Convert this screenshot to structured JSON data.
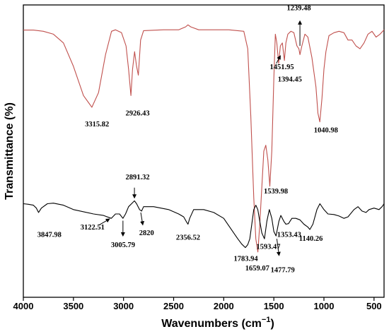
{
  "chart_data": {
    "type": "line",
    "xlabel": "Wavenumbers (cm",
    "xlabel_sup": "−1",
    "xlabel_close": ")",
    "ylabel": "Transmittance (%)",
    "xlim": [
      4000,
      400
    ],
    "x_reversed": true,
    "x_ticks": [
      4000,
      3500,
      3000,
      2500,
      2000,
      1500,
      1000,
      500
    ],
    "y_ticks_shown": false,
    "grid": false,
    "series": [
      {
        "color": "#c0504d",
        "points": [
          [
            4000,
            0.914
          ],
          [
            3900,
            0.914
          ],
          [
            3800,
            0.91
          ],
          [
            3700,
            0.9
          ],
          [
            3600,
            0.87
          ],
          [
            3500,
            0.79
          ],
          [
            3400,
            0.69
          ],
          [
            3315.82,
            0.65
          ],
          [
            3250,
            0.7
          ],
          [
            3180,
            0.83
          ],
          [
            3120,
            0.91
          ],
          [
            3080,
            0.915
          ],
          [
            3020,
            0.905
          ],
          [
            2975,
            0.86
          ],
          [
            2950,
            0.78
          ],
          [
            2926.43,
            0.69
          ],
          [
            2910,
            0.78
          ],
          [
            2890,
            0.84
          ],
          [
            2870,
            0.79
          ],
          [
            2852,
            0.76
          ],
          [
            2830,
            0.88
          ],
          [
            2800,
            0.912
          ],
          [
            2600,
            0.915
          ],
          [
            2450,
            0.915
          ],
          [
            2380,
            0.925
          ],
          [
            2356.52,
            0.932
          ],
          [
            2330,
            0.925
          ],
          [
            2250,
            0.915
          ],
          [
            1950,
            0.915
          ],
          [
            1800,
            0.91
          ],
          [
            1760,
            0.85
          ],
          [
            1730,
            0.62
          ],
          [
            1700,
            0.34
          ],
          [
            1680,
            0.2
          ],
          [
            1659.07,
            0.155
          ],
          [
            1640,
            0.25
          ],
          [
            1600,
            0.5
          ],
          [
            1580,
            0.52
          ],
          [
            1560,
            0.47
          ],
          [
            1539.98,
            0.38
          ],
          [
            1520,
            0.5
          ],
          [
            1500,
            0.75
          ],
          [
            1485,
            0.9
          ],
          [
            1470,
            0.87
          ],
          [
            1451.95,
            0.8
          ],
          [
            1435,
            0.86
          ],
          [
            1415,
            0.87
          ],
          [
            1394.45,
            0.81
          ],
          [
            1380,
            0.87
          ],
          [
            1360,
            0.9
          ],
          [
            1330,
            0.91
          ],
          [
            1300,
            0.905
          ],
          [
            1270,
            0.86
          ],
          [
            1250,
            0.85
          ],
          [
            1239.48,
            0.83
          ],
          [
            1220,
            0.86
          ],
          [
            1190,
            0.9
          ],
          [
            1160,
            0.89
          ],
          [
            1120,
            0.82
          ],
          [
            1080,
            0.72
          ],
          [
            1060,
            0.63
          ],
          [
            1040.98,
            0.6
          ],
          [
            1020,
            0.68
          ],
          [
            1000,
            0.78
          ],
          [
            980,
            0.84
          ],
          [
            950,
            0.895
          ],
          [
            900,
            0.905
          ],
          [
            850,
            0.91
          ],
          [
            800,
            0.905
          ],
          [
            760,
            0.88
          ],
          [
            720,
            0.88
          ],
          [
            680,
            0.86
          ],
          [
            640,
            0.85
          ],
          [
            600,
            0.87
          ],
          [
            560,
            0.9
          ],
          [
            520,
            0.91
          ],
          [
            480,
            0.89
          ],
          [
            440,
            0.9
          ],
          [
            400,
            0.915
          ]
        ]
      },
      {
        "color": "#000000",
        "points": [
          [
            4000,
            0.32
          ],
          [
            3950,
            0.318
          ],
          [
            3900,
            0.315
          ],
          [
            3870,
            0.305
          ],
          [
            3847.98,
            0.29
          ],
          [
            3820,
            0.305
          ],
          [
            3760,
            0.32
          ],
          [
            3700,
            0.322
          ],
          [
            3600,
            0.315
          ],
          [
            3500,
            0.3
          ],
          [
            3300,
            0.285
          ],
          [
            3200,
            0.28
          ],
          [
            3122.51,
            0.27
          ],
          [
            3080,
            0.285
          ],
          [
            3040,
            0.285
          ],
          [
            3005.79,
            0.27
          ],
          [
            2980,
            0.285
          ],
          [
            2950,
            0.31
          ],
          [
            2920,
            0.32
          ],
          [
            2891.32,
            0.33
          ],
          [
            2870,
            0.32
          ],
          [
            2840,
            0.3
          ],
          [
            2820,
            0.295
          ],
          [
            2800,
            0.31
          ],
          [
            2700,
            0.31
          ],
          [
            2550,
            0.3
          ],
          [
            2450,
            0.285
          ],
          [
            2400,
            0.275
          ],
          [
            2375,
            0.26
          ],
          [
            2356.52,
            0.25
          ],
          [
            2340,
            0.27
          ],
          [
            2300,
            0.3
          ],
          [
            2200,
            0.3
          ],
          [
            2100,
            0.29
          ],
          [
            2000,
            0.27
          ],
          [
            1950,
            0.245
          ],
          [
            1900,
            0.22
          ],
          [
            1860,
            0.2
          ],
          [
            1820,
            0.182
          ],
          [
            1783.94,
            0.17
          ],
          [
            1760,
            0.18
          ],
          [
            1740,
            0.2
          ],
          [
            1720,
            0.25
          ],
          [
            1700,
            0.3
          ],
          [
            1680,
            0.315
          ],
          [
            1660,
            0.3
          ],
          [
            1640,
            0.26
          ],
          [
            1620,
            0.22
          ],
          [
            1593.47,
            0.2
          ],
          [
            1570,
            0.26
          ],
          [
            1545,
            0.3
          ],
          [
            1520,
            0.27
          ],
          [
            1500,
            0.225
          ],
          [
            1477.79,
            0.21
          ],
          [
            1450,
            0.26
          ],
          [
            1430,
            0.28
          ],
          [
            1400,
            0.26
          ],
          [
            1380,
            0.25
          ],
          [
            1353.43,
            0.252
          ],
          [
            1320,
            0.27
          ],
          [
            1280,
            0.27
          ],
          [
            1240,
            0.265
          ],
          [
            1200,
            0.25
          ],
          [
            1160,
            0.24
          ],
          [
            1140.26,
            0.232
          ],
          [
            1110,
            0.25
          ],
          [
            1070,
            0.3
          ],
          [
            1040,
            0.32
          ],
          [
            1000,
            0.3
          ],
          [
            960,
            0.285
          ],
          [
            900,
            0.283
          ],
          [
            850,
            0.278
          ],
          [
            800,
            0.27
          ],
          [
            760,
            0.275
          ],
          [
            700,
            0.3
          ],
          [
            660,
            0.31
          ],
          [
            620,
            0.295
          ],
          [
            580,
            0.29
          ],
          [
            550,
            0.3
          ],
          [
            500,
            0.305
          ],
          [
            450,
            0.3
          ],
          [
            420,
            0.31
          ],
          [
            400,
            0.32
          ]
        ]
      }
    ],
    "annotations": [
      {
        "text": "3315.82",
        "x": 3315.82,
        "series": 0,
        "label_x": 3265,
        "label_y": 0.584,
        "arrow": false
      },
      {
        "text": "2926.43",
        "x": 2926.43,
        "series": 0,
        "label_x": 2860,
        "label_y": 0.622,
        "arrow": false
      },
      {
        "text": "1659.07",
        "x": 1659.07,
        "series": 0,
        "label_x": 1665,
        "label_y": 0.092,
        "arrow": false
      },
      {
        "text": "1539.98",
        "x": 1539.98,
        "series": 0,
        "label_x": 1480,
        "label_y": 0.355,
        "arrow": false
      },
      {
        "text": "1451.95",
        "x": 1451.95,
        "series": 0,
        "label_x": 1420,
        "label_y": 0.78,
        "arrow": true,
        "arrow_from": [
          1475,
          0.8
        ],
        "arrow_to": [
          1435,
          0.826
        ]
      },
      {
        "text": "1394.45",
        "x": 1394.45,
        "series": 0,
        "label_x": 1340,
        "label_y": 0.738,
        "arrow": false
      },
      {
        "text": "1239.48",
        "x": 1239.48,
        "series": 0,
        "label_x": 1250,
        "label_y": 0.982,
        "arrow": true,
        "arrow_from": [
          1239.48,
          0.86
        ],
        "arrow_to": [
          1239.48,
          0.945
        ]
      },
      {
        "text": "1040.98",
        "x": 1040.98,
        "series": 0,
        "label_x": 980,
        "label_y": 0.564,
        "arrow": false
      },
      {
        "text": "3847.98",
        "x": 3847.98,
        "series": 1,
        "label_x": 3740,
        "label_y": 0.206,
        "arrow": false
      },
      {
        "text": "3122.51",
        "x": 3122.51,
        "series": 1,
        "label_x": 3310,
        "label_y": 0.232,
        "arrow": true,
        "arrow_from": [
          3240,
          0.248
        ],
        "arrow_to": [
          3140,
          0.268
        ]
      },
      {
        "text": "3005.79",
        "x": 3005.79,
        "series": 1,
        "label_x": 3005,
        "label_y": 0.172,
        "arrow": true,
        "arrow_from": [
          3005.79,
          0.262
        ],
        "arrow_to": [
          3005.79,
          0.21
        ]
      },
      {
        "text": "2891.32",
        "x": 2891.32,
        "series": 1,
        "label_x": 2860,
        "label_y": 0.403,
        "arrow": true,
        "arrow_from": [
          2891.32,
          0.375
        ],
        "arrow_to": [
          2891.32,
          0.34
        ]
      },
      {
        "text": "2820",
        "x": 2820,
        "series": 1,
        "label_x": 2770,
        "label_y": 0.212,
        "arrow": true,
        "arrow_from": [
          2828,
          0.29
        ],
        "arrow_to": [
          2808,
          0.248
        ]
      },
      {
        "text": "2356.52",
        "x": 2356.52,
        "series": 1,
        "label_x": 2356,
        "label_y": 0.197,
        "arrow": false
      },
      {
        "text": "1783.94",
        "x": 1783.94,
        "series": 1,
        "label_x": 1780,
        "label_y": 0.124,
        "arrow": false
      },
      {
        "text": "1593.47",
        "x": 1593.47,
        "series": 1,
        "label_x": 1555,
        "label_y": 0.165,
        "arrow": false
      },
      {
        "text": "1353.43",
        "x": 1353.43,
        "series": 1,
        "label_x": 1347,
        "label_y": 0.207,
        "arrow": false
      },
      {
        "text": "1140.26",
        "x": 1140.26,
        "series": 1,
        "label_x": 1130,
        "label_y": 0.193,
        "arrow": false
      },
      {
        "text": "1477.79",
        "x": 1477.79,
        "series": 1,
        "label_x": 1412,
        "label_y": 0.086,
        "arrow": true,
        "arrow_from": [
          1470,
          0.2
        ],
        "arrow_to": [
          1448,
          0.143
        ]
      }
    ]
  }
}
